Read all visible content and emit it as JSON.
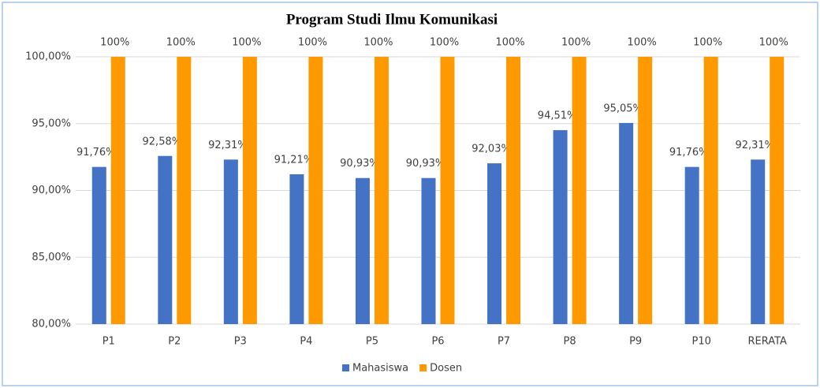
{
  "chart_data": {
    "type": "bar",
    "title": "Program Studi Ilmu Komunikasi",
    "categories": [
      "P1",
      "P2",
      "P3",
      "P4",
      "P5",
      "P6",
      "P7",
      "P8",
      "P9",
      "P10",
      "RERATA"
    ],
    "series": [
      {
        "name": "Mahasiswa",
        "color": "#4472c4",
        "values": [
          91.76,
          92.58,
          92.31,
          91.21,
          90.93,
          90.93,
          92.03,
          94.51,
          95.05,
          91.76,
          92.31
        ],
        "value_labels": [
          "91,76%",
          "92,58%",
          "92,31%",
          "91,21%",
          "90,93%",
          "90,93%",
          "92,03%",
          "94,51%",
          "95,05%",
          "91,76%",
          "92,31%"
        ]
      },
      {
        "name": "Dosen",
        "color": "#ff9900",
        "values": [
          100,
          100,
          100,
          100,
          100,
          100,
          100,
          100,
          100,
          100,
          100
        ],
        "value_labels": [
          "100%",
          "100%",
          "100%",
          "100%",
          "100%",
          "100%",
          "100%",
          "100%",
          "100%",
          "100%",
          "100%"
        ]
      }
    ],
    "ylim": [
      80,
      100
    ],
    "yticks": [
      {
        "value": 80,
        "label": "80,00%"
      },
      {
        "value": 85,
        "label": "85,00%"
      },
      {
        "value": 90,
        "label": "90,00%"
      },
      {
        "value": 95,
        "label": "95,00%"
      },
      {
        "value": 100,
        "label": "100,00%"
      }
    ],
    "grid": true,
    "legend": "bottom"
  }
}
